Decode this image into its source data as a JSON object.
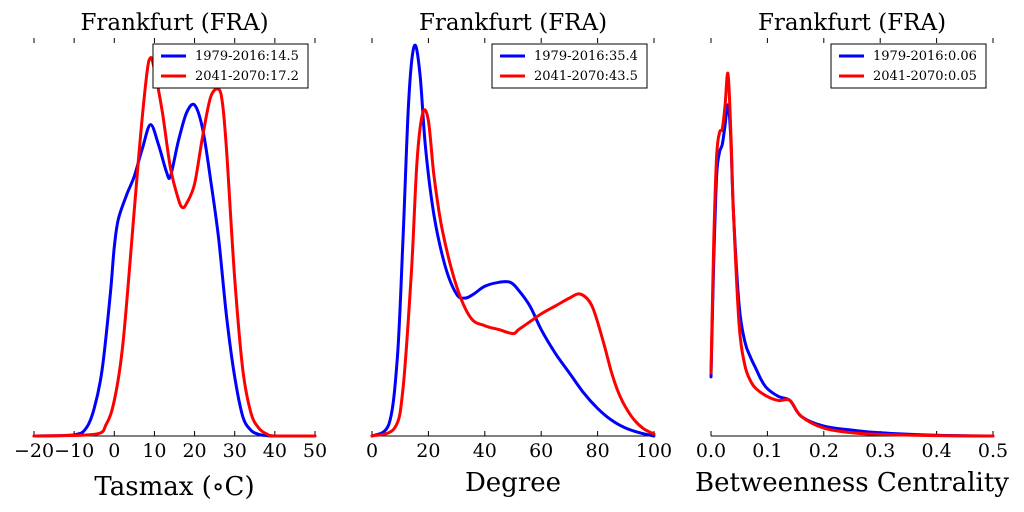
{
  "colors": {
    "blue": "#0000ff",
    "red": "#ff0000"
  },
  "chart_data": [
    {
      "type": "line",
      "title": "Frankfurt (FRA)",
      "xlabel": "Tasmax (∘C)",
      "ylabel": "",
      "xlim": [
        -20,
        50
      ],
      "ylim": [
        0,
        1
      ],
      "xticks": [
        -20,
        -10,
        0,
        10,
        20,
        30,
        40,
        50
      ],
      "xtick_labels": [
        "−20",
        "−10",
        "0",
        "10",
        "20",
        "30",
        "40",
        "50"
      ],
      "legend": "top-right",
      "series": [
        {
          "name": "1979-2016:14.5",
          "color": "#0000ff",
          "x": [
            -20,
            -10,
            -7,
            -5,
            -3,
            -1,
            0,
            1,
            3,
            5,
            7,
            9,
            11,
            13,
            14,
            16,
            18,
            20,
            22,
            24,
            26,
            28,
            30,
            32,
            34,
            36,
            38,
            40,
            50
          ],
          "y": [
            0,
            0.003,
            0.02,
            0.07,
            0.17,
            0.36,
            0.48,
            0.55,
            0.61,
            0.66,
            0.73,
            0.79,
            0.74,
            0.67,
            0.66,
            0.75,
            0.82,
            0.84,
            0.78,
            0.65,
            0.5,
            0.3,
            0.15,
            0.05,
            0.015,
            0.004,
            0.001,
            0,
            0
          ]
        },
        {
          "name": "2041-2070:17.2",
          "color": "#ff0000",
          "x": [
            -20,
            -5,
            -2,
            0,
            2,
            4,
            6,
            8,
            9,
            10,
            12,
            14,
            16,
            17,
            18,
            20,
            22,
            24,
            26,
            27,
            28,
            30,
            32,
            34,
            36,
            38,
            40,
            50
          ],
          "y": [
            0,
            0.004,
            0.03,
            0.09,
            0.22,
            0.45,
            0.7,
            0.91,
            0.96,
            0.93,
            0.82,
            0.68,
            0.6,
            0.58,
            0.59,
            0.64,
            0.76,
            0.86,
            0.88,
            0.84,
            0.72,
            0.4,
            0.17,
            0.06,
            0.02,
            0.005,
            0,
            0
          ]
        }
      ]
    },
    {
      "type": "line",
      "title": "Frankfurt (FRA)",
      "xlabel": "Degree",
      "ylabel": "",
      "xlim": [
        0,
        100
      ],
      "ylim": [
        0,
        1
      ],
      "xticks": [
        0,
        20,
        40,
        60,
        80,
        100
      ],
      "xtick_labels": [
        "0",
        "20",
        "40",
        "60",
        "80",
        "100"
      ],
      "legend": "top-right",
      "series": [
        {
          "name": "1979-2016:35.4",
          "color": "#0000ff",
          "x": [
            0,
            6,
            9,
            11,
            13,
            15,
            17,
            19,
            22,
            26,
            30,
            33,
            36,
            40,
            45,
            49,
            52,
            56,
            60,
            65,
            70,
            75,
            80,
            85,
            90,
            95,
            100
          ],
          "y": [
            0,
            0.03,
            0.2,
            0.5,
            0.85,
            0.99,
            0.92,
            0.73,
            0.56,
            0.43,
            0.36,
            0.35,
            0.36,
            0.38,
            0.39,
            0.39,
            0.37,
            0.33,
            0.27,
            0.21,
            0.16,
            0.11,
            0.07,
            0.04,
            0.02,
            0.008,
            0
          ]
        },
        {
          "name": "2041-2070:43.5",
          "color": "#ff0000",
          "x": [
            0,
            8,
            11,
            14,
            16,
            18,
            20,
            22,
            25,
            30,
            35,
            40,
            45,
            50,
            52,
            56,
            60,
            65,
            70,
            74,
            78,
            82,
            85,
            88,
            92,
            96,
            100
          ],
          "y": [
            0,
            0.02,
            0.12,
            0.42,
            0.7,
            0.82,
            0.8,
            0.66,
            0.52,
            0.38,
            0.3,
            0.28,
            0.27,
            0.26,
            0.27,
            0.29,
            0.31,
            0.33,
            0.35,
            0.36,
            0.33,
            0.24,
            0.16,
            0.1,
            0.05,
            0.02,
            0.005
          ]
        }
      ]
    },
    {
      "type": "line",
      "title": "Frankfurt (FRA)",
      "xlabel": "Betweenness Centrality",
      "ylabel": "",
      "xlim": [
        0,
        0.5
      ],
      "ylim": [
        0,
        1
      ],
      "xticks": [
        0,
        0.1,
        0.2,
        0.3,
        0.4,
        0.5
      ],
      "xtick_labels": [
        "0.0",
        "0.1",
        "0.2",
        "0.3",
        "0.4",
        "0.5"
      ],
      "legend": "top-right",
      "series": [
        {
          "name": "1979-2016:0.06",
          "color": "#0000ff",
          "x": [
            0,
            0.005,
            0.01,
            0.015,
            0.02,
            0.025,
            0.03,
            0.035,
            0.04,
            0.05,
            0.06,
            0.07,
            0.08,
            0.09,
            0.1,
            0.12,
            0.14,
            0.16,
            0.2,
            0.25,
            0.3,
            0.4,
            0.5
          ],
          "y": [
            0.15,
            0.45,
            0.66,
            0.72,
            0.74,
            0.79,
            0.84,
            0.76,
            0.56,
            0.33,
            0.24,
            0.2,
            0.17,
            0.14,
            0.12,
            0.1,
            0.09,
            0.05,
            0.025,
            0.015,
            0.008,
            0.002,
            0
          ]
        },
        {
          "name": "2041-2070:0.05",
          "color": "#ff0000",
          "x": [
            0,
            0.005,
            0.01,
            0.015,
            0.02,
            0.025,
            0.03,
            0.035,
            0.04,
            0.05,
            0.06,
            0.07,
            0.08,
            0.1,
            0.12,
            0.14,
            0.16,
            0.2,
            0.25,
            0.3,
            0.4,
            0.5
          ],
          "y": [
            0.16,
            0.5,
            0.71,
            0.77,
            0.78,
            0.84,
            0.92,
            0.78,
            0.56,
            0.28,
            0.18,
            0.14,
            0.12,
            0.1,
            0.09,
            0.09,
            0.05,
            0.02,
            0.008,
            0.004,
            0.001,
            0
          ]
        }
      ]
    }
  ]
}
